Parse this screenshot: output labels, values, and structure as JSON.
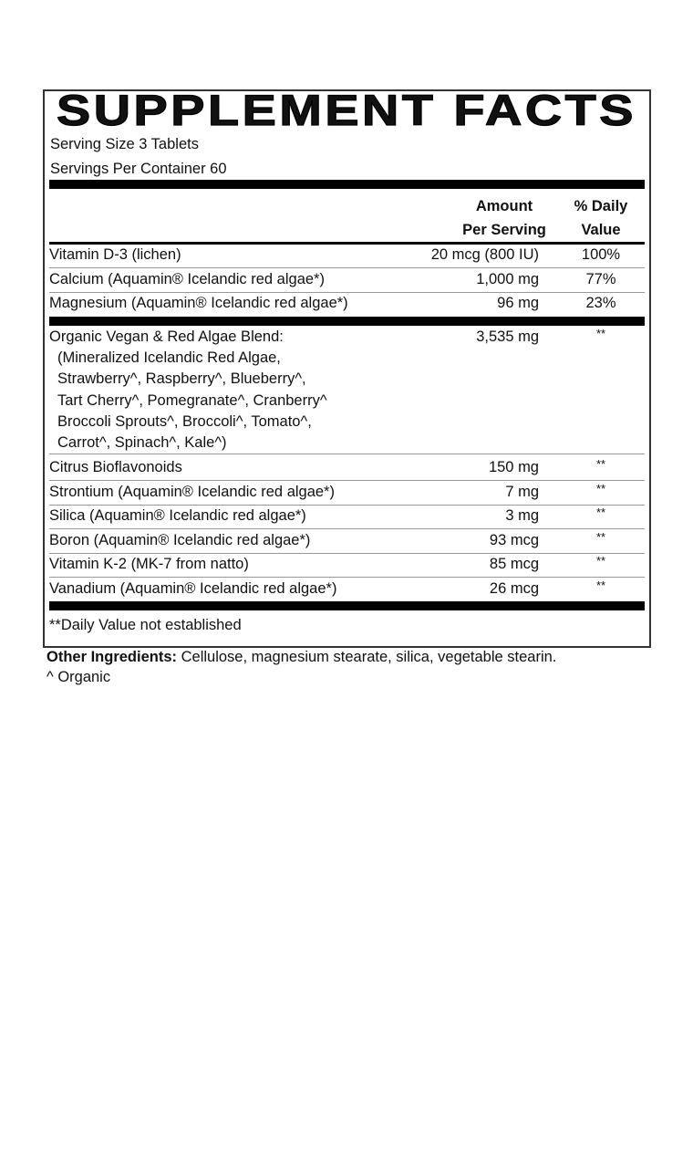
{
  "title": "SUPPLEMENT FACTS",
  "serving_size": "Serving Size 3 Tablets",
  "servings_per_container": "Servings Per Container 60",
  "header": {
    "amount_1": "Amount",
    "amount_2": "Per Serving",
    "dv_1": "% Daily",
    "dv_2": "Value"
  },
  "vitamins": [
    {
      "name": "Vitamin D-3 (lichen)",
      "amount": "20 mcg (800 IU)",
      "dv": "100%"
    },
    {
      "name": "Calcium (Aquamin® Icelandic red algae*)",
      "amount": "1,000 mg",
      "dv": "77%"
    },
    {
      "name": "Magnesium (Aquamin® Icelandic red algae*)",
      "amount": "96 mg",
      "dv": "23%"
    }
  ],
  "blend": {
    "name": "Organic Vegan & Red Algae Blend:",
    "amount": "3,535 mg",
    "dv": "**",
    "lines": [
      "(Mineralized Icelandic Red Algae,",
      "Strawberry^, Raspberry^, Blueberry^,",
      "Tart Cherry^, Pomegranate^, Cranberry^",
      "Broccoli Sprouts^, Broccoli^, Tomato^,",
      "Carrot^, Spinach^, Kale^)"
    ]
  },
  "others": [
    {
      "name": "Citrus Bioflavonoids",
      "amount": "150 mg",
      "dv": "**"
    },
    {
      "name": "Strontium (Aquamin® Icelandic red algae*)",
      "amount": "7 mg",
      "dv": "**"
    },
    {
      "name": "Silica (Aquamin® Icelandic red algae*)",
      "amount": "3 mg",
      "dv": "**"
    },
    {
      "name": "Boron (Aquamin® Icelandic red algae*)",
      "amount": "93 mcg",
      "dv": "**"
    },
    {
      "name": "Vitamin K-2 (MK-7 from natto)",
      "amount": "85 mcg",
      "dv": "**"
    },
    {
      "name": "Vanadium (Aquamin® Icelandic red algae*)",
      "amount": "26 mcg",
      "dv": "**"
    }
  ],
  "footnote": "**Daily Value not established",
  "other_ingredients": {
    "label": "Other Ingredients:",
    "text": " Cellulose, magnesium stearate, silica,  vegetable stearin."
  },
  "organic_note": "^ Organic"
}
